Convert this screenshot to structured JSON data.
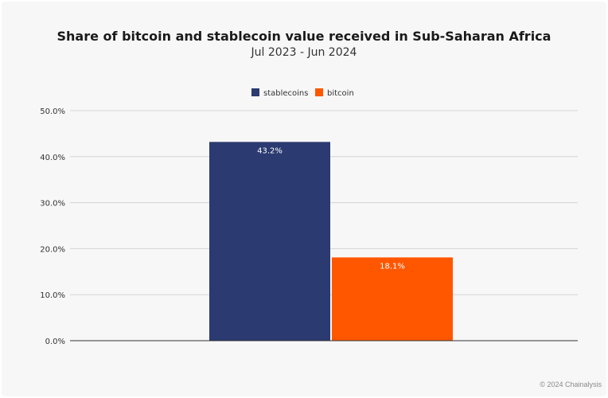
{
  "chart_data": {
    "type": "bar",
    "title": "Share of bitcoin and stablecoin value received in Sub-Saharan Africa",
    "subtitle": "Jul 2023 - Jun 2024",
    "xlabel": "",
    "ylabel": "",
    "categories": [
      ""
    ],
    "series": [
      {
        "name": "stablecoins",
        "color": "#2b3a70",
        "values": [
          43.2
        ],
        "labels": [
          "43.2%"
        ]
      },
      {
        "name": "bitcoin",
        "color": "#ff5700",
        "values": [
          18.1
        ],
        "labels": [
          "18.1%"
        ]
      }
    ],
    "ylim": [
      0,
      50
    ],
    "yticks": [
      0,
      10,
      20,
      30,
      40,
      50
    ],
    "ytick_labels": [
      "0.0%",
      "10.0%",
      "20.0%",
      "30.0%",
      "40.0%",
      "50.0%"
    ],
    "grid": true,
    "legend": "top-center"
  },
  "footer": {
    "credit": "© 2024 Chainalysis"
  }
}
